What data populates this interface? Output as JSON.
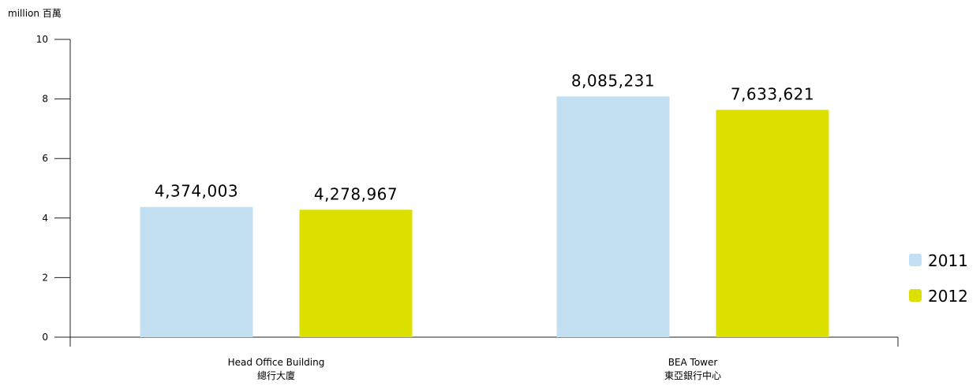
{
  "chart_data": {
    "type": "bar",
    "unit_label": "million 百萬",
    "ylim": [
      0,
      10
    ],
    "yticks": [
      "0",
      "2",
      "4",
      "6",
      "8",
      "10"
    ],
    "categories": [
      [
        "Head Office Building",
        "總行大廈"
      ],
      [
        "BEA Tower",
        "東亞銀行中心"
      ]
    ],
    "series": [
      {
        "name": "2011",
        "color": "#c2e0f2",
        "values": [
          4.374003,
          8.085231
        ],
        "labels": [
          "4,374,003",
          "8,085,231"
        ]
      },
      {
        "name": "2012",
        "color": "#dbe000",
        "values": [
          4.278967,
          7.633621
        ],
        "labels": [
          "4,278,967",
          "7,633,621"
        ]
      }
    ],
    "grid": false,
    "legend_position": "right"
  }
}
